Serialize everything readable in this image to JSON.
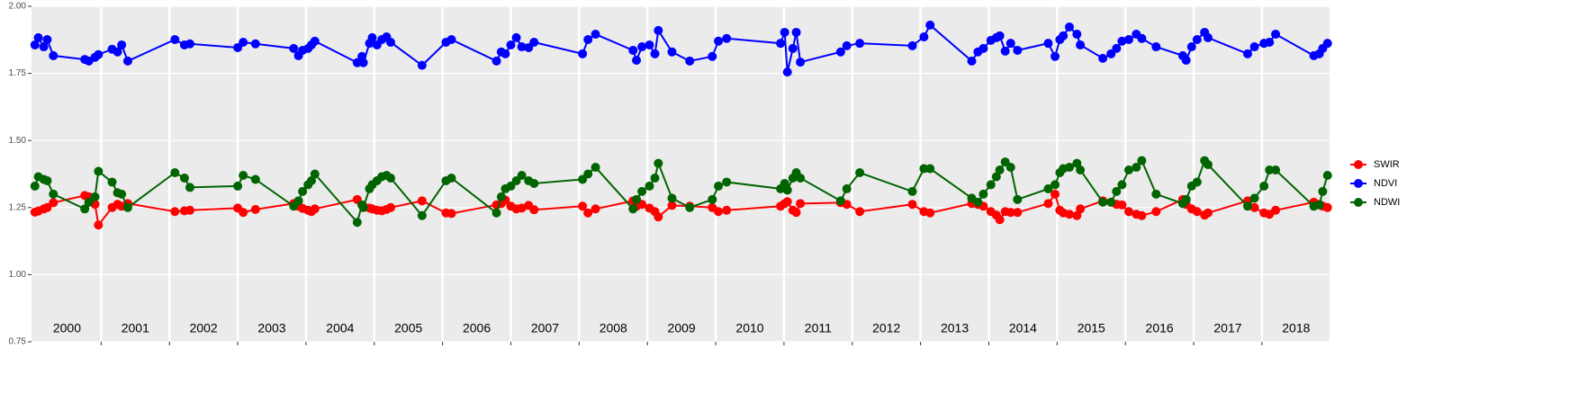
{
  "chart_data": {
    "type": "line",
    "x": [
      2000.03,
      2000.08,
      2000.16,
      2000.21,
      2000.3,
      2000.76,
      2000.82,
      2000.91,
      2000.96,
      2001.16,
      2001.24,
      2001.3,
      2001.39,
      2002.08,
      2002.22,
      2002.3,
      2003.0,
      2003.08,
      2003.26,
      2003.82,
      2003.89,
      2003.95,
      2004.03,
      2004.08,
      2004.13,
      2004.75,
      2004.82,
      2004.84,
      2004.93,
      2004.97,
      2005.04,
      2005.11,
      2005.18,
      2005.24,
      2005.7,
      2006.05,
      2006.13,
      2006.79,
      2006.86,
      2006.92,
      2007.0,
      2007.08,
      2007.16,
      2007.26,
      2007.34,
      2008.05,
      2008.13,
      2008.24,
      2008.79,
      2008.84,
      2008.92,
      2009.03,
      2009.11,
      2009.16,
      2009.36,
      2009.62,
      2009.95,
      2010.04,
      2010.16,
      2010.95,
      2011.01,
      2011.05,
      2011.13,
      2011.18,
      2011.24,
      2011.83,
      2011.92,
      2012.11,
      2012.88,
      2013.05,
      2013.14,
      2013.75,
      2013.84,
      2013.92,
      2014.03,
      2014.11,
      2014.16,
      2014.24,
      2014.32,
      2014.42,
      2014.87,
      2014.97,
      2015.04,
      2015.09,
      2015.18,
      2015.29,
      2015.34,
      2015.67,
      2015.79,
      2015.87,
      2015.95,
      2016.05,
      2016.16,
      2016.24,
      2016.45,
      2016.84,
      2016.89,
      2016.97,
      2017.05,
      2017.16,
      2017.21,
      2017.79,
      2017.89,
      2018.03,
      2018.11,
      2018.2,
      2018.76,
      2018.84,
      2018.89,
      2018.96
    ],
    "series": [
      {
        "name": "SWIR",
        "color": "#ff0000",
        "values": [
          1.233,
          1.237,
          1.245,
          1.25,
          1.268,
          1.295,
          1.29,
          1.262,
          1.185,
          1.25,
          1.262,
          1.255,
          1.265,
          1.235,
          1.238,
          1.24,
          1.248,
          1.232,
          1.243,
          1.265,
          1.255,
          1.247,
          1.24,
          1.235,
          1.245,
          1.28,
          1.26,
          1.255,
          1.248,
          1.245,
          1.24,
          1.238,
          1.243,
          1.25,
          1.275,
          1.23,
          1.228,
          1.26,
          1.265,
          1.278,
          1.255,
          1.245,
          1.248,
          1.258,
          1.242,
          1.255,
          1.23,
          1.245,
          1.275,
          1.255,
          1.262,
          1.248,
          1.235,
          1.215,
          1.258,
          1.255,
          1.25,
          1.235,
          1.24,
          1.255,
          1.265,
          1.272,
          1.24,
          1.232,
          1.265,
          1.268,
          1.262,
          1.235,
          1.262,
          1.235,
          1.23,
          1.265,
          1.262,
          1.255,
          1.235,
          1.222,
          1.205,
          1.235,
          1.232,
          1.232,
          1.265,
          1.3,
          1.24,
          1.23,
          1.225,
          1.22,
          1.245,
          1.275,
          1.27,
          1.262,
          1.26,
          1.235,
          1.225,
          1.22,
          1.235,
          1.28,
          1.262,
          1.245,
          1.235,
          1.222,
          1.23,
          1.275,
          1.25,
          1.23,
          1.225,
          1.24,
          1.27,
          1.262,
          1.255,
          1.25
        ]
      },
      {
        "name": "NDVI",
        "color": "#0000ff",
        "values": [
          1.856,
          1.883,
          1.849,
          1.876,
          1.816,
          1.802,
          1.796,
          1.81,
          1.82,
          1.84,
          1.83,
          1.856,
          1.796,
          1.876,
          1.856,
          1.86,
          1.846,
          1.866,
          1.86,
          1.843,
          1.816,
          1.836,
          1.843,
          1.856,
          1.87,
          1.79,
          1.813,
          1.79,
          1.862,
          1.883,
          1.856,
          1.876,
          1.886,
          1.866,
          1.78,
          1.866,
          1.876,
          1.796,
          1.83,
          1.823,
          1.856,
          1.883,
          1.849,
          1.846,
          1.866,
          1.823,
          1.876,
          1.896,
          1.836,
          1.799,
          1.849,
          1.856,
          1.823,
          1.91,
          1.83,
          1.796,
          1.813,
          1.87,
          1.88,
          1.862,
          1.903,
          1.755,
          1.843,
          1.903,
          1.792,
          1.83,
          1.853,
          1.862,
          1.853,
          1.886,
          1.93,
          1.796,
          1.83,
          1.843,
          1.873,
          1.883,
          1.89,
          1.833,
          1.862,
          1.836,
          1.862,
          1.813,
          1.876,
          1.89,
          1.923,
          1.896,
          1.856,
          1.806,
          1.823,
          1.843,
          1.87,
          1.876,
          1.896,
          1.88,
          1.849,
          1.816,
          1.799,
          1.849,
          1.876,
          1.903,
          1.883,
          1.823,
          1.849,
          1.862,
          1.866,
          1.896,
          1.816,
          1.823,
          1.843,
          1.862
        ]
      },
      {
        "name": "NDWI",
        "color": "#006400",
        "values": [
          1.33,
          1.365,
          1.355,
          1.35,
          1.3,
          1.245,
          1.27,
          1.29,
          1.385,
          1.345,
          1.305,
          1.3,
          1.25,
          1.38,
          1.36,
          1.325,
          1.33,
          1.37,
          1.355,
          1.255,
          1.275,
          1.31,
          1.335,
          1.35,
          1.375,
          1.195,
          1.26,
          1.25,
          1.32,
          1.335,
          1.35,
          1.365,
          1.37,
          1.36,
          1.22,
          1.35,
          1.36,
          1.23,
          1.29,
          1.32,
          1.33,
          1.35,
          1.37,
          1.35,
          1.34,
          1.355,
          1.375,
          1.4,
          1.245,
          1.28,
          1.31,
          1.33,
          1.36,
          1.415,
          1.285,
          1.25,
          1.28,
          1.33,
          1.345,
          1.32,
          1.34,
          1.315,
          1.36,
          1.38,
          1.36,
          1.275,
          1.32,
          1.38,
          1.31,
          1.395,
          1.395,
          1.285,
          1.27,
          1.3,
          1.335,
          1.365,
          1.39,
          1.42,
          1.4,
          1.28,
          1.32,
          1.335,
          1.38,
          1.395,
          1.4,
          1.415,
          1.39,
          1.27,
          1.27,
          1.31,
          1.335,
          1.39,
          1.4,
          1.425,
          1.3,
          1.265,
          1.28,
          1.33,
          1.345,
          1.425,
          1.41,
          1.255,
          1.285,
          1.33,
          1.39,
          1.39,
          1.255,
          1.26,
          1.31,
          1.37
        ]
      }
    ],
    "xlim": [
      1999.98,
      2018.99
    ],
    "xticks": [
      2001,
      2002,
      2003,
      2004,
      2005,
      2006,
      2007,
      2008,
      2009,
      2010,
      2011,
      2012,
      2013,
      2014,
      2015,
      2016,
      2017,
      2018
    ],
    "year_labels": [
      {
        "value": 2000.5,
        "label": "2000"
      },
      {
        "value": 2001.5,
        "label": "2001"
      },
      {
        "value": 2002.5,
        "label": "2002"
      },
      {
        "value": 2003.5,
        "label": "2003"
      },
      {
        "value": 2004.5,
        "label": "2004"
      },
      {
        "value": 2005.5,
        "label": "2005"
      },
      {
        "value": 2006.5,
        "label": "2006"
      },
      {
        "value": 2007.5,
        "label": "2007"
      },
      {
        "value": 2008.5,
        "label": "2008"
      },
      {
        "value": 2009.5,
        "label": "2009"
      },
      {
        "value": 2010.5,
        "label": "2010"
      },
      {
        "value": 2011.5,
        "label": "2011"
      },
      {
        "value": 2012.5,
        "label": "2012"
      },
      {
        "value": 2013.5,
        "label": "2013"
      },
      {
        "value": 2014.5,
        "label": "2014"
      },
      {
        "value": 2015.5,
        "label": "2015"
      },
      {
        "value": 2016.5,
        "label": "2016"
      },
      {
        "value": 2017.5,
        "label": "2017"
      },
      {
        "value": 2018.5,
        "label": "2018"
      }
    ],
    "ylim": [
      0.75,
      2.0
    ],
    "yticks": [
      {
        "value": 0.75,
        "label": "0.75"
      },
      {
        "value": 1.0,
        "label": "1.00"
      },
      {
        "value": 1.25,
        "label": "1.25"
      },
      {
        "value": 1.5,
        "label": "1.50"
      },
      {
        "value": 1.75,
        "label": "1.75"
      },
      {
        "value": 2.0,
        "label": "2.00"
      }
    ],
    "grid": true,
    "legend": "right"
  }
}
